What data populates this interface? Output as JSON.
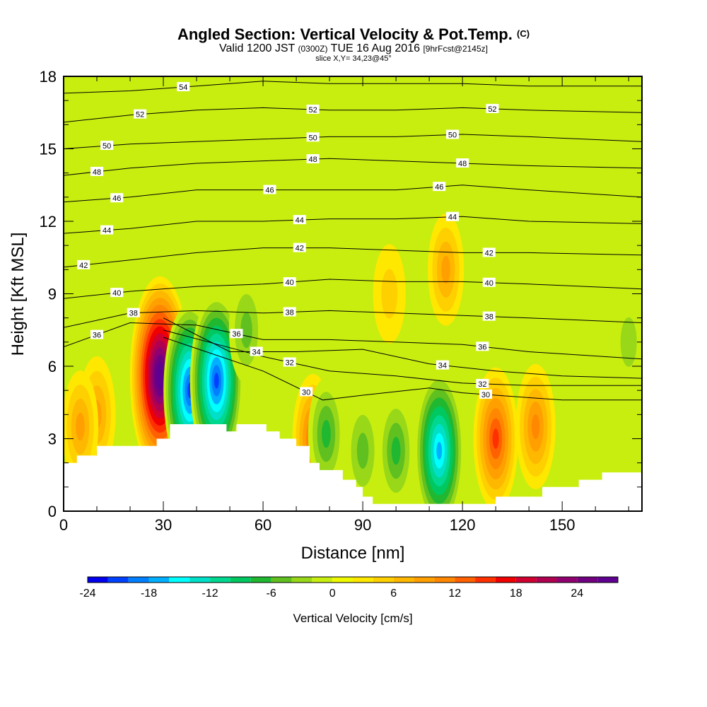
{
  "title": {
    "main": "Angled Section: Vertical Velocity & Pot.Temp.",
    "main_unit": "(C)",
    "valid_prefix": "Valid 1200 JST",
    "valid_zulu": "(0300Z)",
    "valid_date": "TUE 16 Aug 2016",
    "forecast": "[9hrFcst@2145z]",
    "slice": "slice X,Y= 34,23@45°"
  },
  "chart_data": {
    "type": "heatmap",
    "xlabel": "Distance [nm]",
    "ylabel": "Height [Kft MSL]",
    "xlim": [
      0,
      174
    ],
    "ylim": [
      0,
      18
    ],
    "x_ticks": [
      0,
      30,
      60,
      90,
      120,
      150
    ],
    "y_ticks": [
      0,
      3,
      6,
      9,
      12,
      15,
      18
    ],
    "colorbar": {
      "title": "Vertical Velocity [cm/s]",
      "range": [
        -24,
        28
      ],
      "tick_values": [
        -24,
        -18,
        -12,
        -6,
        0,
        6,
        12,
        18,
        24
      ],
      "tick_labels": [
        "-24",
        "-18",
        "-12",
        "-6",
        "0",
        "6",
        "12",
        "18",
        "24"
      ],
      "colors": [
        "#0000ee",
        "#0040ff",
        "#0080ff",
        "#00b0ff",
        "#00ffff",
        "#00e0c8",
        "#00d890",
        "#00c860",
        "#20b830",
        "#60c020",
        "#98d818",
        "#c8ee10",
        "#f0f800",
        "#ffe800",
        "#ffd000",
        "#ffb800",
        "#ffa000",
        "#ff8800",
        "#ff6000",
        "#ff3000",
        "#f00000",
        "#d00030",
        "#b00050",
        "#900070",
        "#700080",
        "#600090"
      ]
    },
    "updrafts": [
      {
        "x": 29,
        "z": 5.6,
        "w": 28
      },
      {
        "x": 10,
        "z": 4.0,
        "w": 9
      },
      {
        "x": 5,
        "z": 3.5,
        "w": 8
      },
      {
        "x": 75,
        "z": 3.0,
        "w": 12
      },
      {
        "x": 130,
        "z": 3.0,
        "w": 15
      },
      {
        "x": 142,
        "z": 3.5,
        "w": 11
      },
      {
        "x": 115,
        "z": 10.0,
        "w": 8
      },
      {
        "x": 98,
        "z": 9.0,
        "w": 5
      }
    ],
    "downdrafts": [
      {
        "x": 38,
        "z": 5.0,
        "w": -22
      },
      {
        "x": 46,
        "z": 5.4,
        "w": -22
      },
      {
        "x": 113,
        "z": 2.5,
        "w": -19
      },
      {
        "x": 79,
        "z": 3.2,
        "w": -8
      },
      {
        "x": 90,
        "z": 2.5,
        "w": -7
      },
      {
        "x": 100,
        "z": 2.5,
        "w": -8
      },
      {
        "x": 55,
        "z": 7.5,
        "w": -7
      },
      {
        "x": 170,
        "z": 7.0,
        "w": -5
      }
    ],
    "terrain": [
      [
        0,
        2.0
      ],
      [
        4,
        2.0
      ],
      [
        4,
        2.3
      ],
      [
        10,
        2.3
      ],
      [
        10,
        2.7
      ],
      [
        28,
        2.7
      ],
      [
        28,
        3.0
      ],
      [
        32,
        3.0
      ],
      [
        32,
        3.6
      ],
      [
        49,
        3.6
      ],
      [
        49,
        3.3
      ],
      [
        52,
        3.3
      ],
      [
        52,
        3.6
      ],
      [
        61,
        3.6
      ],
      [
        61,
        3.3
      ],
      [
        65,
        3.3
      ],
      [
        65,
        3.0
      ],
      [
        70,
        3.0
      ],
      [
        70,
        2.7
      ],
      [
        74,
        2.7
      ],
      [
        74,
        2.0
      ],
      [
        77,
        2.0
      ],
      [
        77,
        1.7
      ],
      [
        84,
        1.7
      ],
      [
        84,
        1.3
      ],
      [
        88,
        1.3
      ],
      [
        88,
        1.0
      ],
      [
        90,
        1.0
      ],
      [
        90,
        0.6
      ],
      [
        93,
        0.6
      ],
      [
        93,
        0.3
      ],
      [
        130,
        0.3
      ],
      [
        130,
        0.6
      ],
      [
        144,
        0.6
      ],
      [
        144,
        1.0
      ],
      [
        155,
        1.0
      ],
      [
        155,
        1.3
      ],
      [
        162,
        1.3
      ],
      [
        162,
        1.6
      ],
      [
        174,
        1.6
      ]
    ],
    "isentropes": [
      {
        "label": "30",
        "x": [
          30,
          60,
          78,
          90,
          110,
          120,
          130,
          150,
          174
        ],
        "z": [
          7.2,
          5.8,
          4.6,
          4.8,
          5.1,
          4.9,
          4.8,
          4.6,
          4.6
        ],
        "labels_at": [
          73,
          127
        ]
      },
      {
        "label": "32",
        "x": [
          30,
          60,
          80,
          100,
          120,
          140,
          174
        ],
        "z": [
          7.5,
          6.4,
          5.8,
          5.6,
          5.3,
          5.2,
          5.2
        ],
        "labels_at": [
          68,
          126
        ]
      },
      {
        "label": "34",
        "x": [
          30,
          50,
          70,
          90,
          110,
          130,
          150,
          174
        ],
        "z": [
          8.0,
          6.6,
          6.6,
          6.7,
          6.1,
          5.8,
          5.6,
          5.5
        ],
        "labels_at": [
          58,
          114
        ]
      },
      {
        "label": "36",
        "x": [
          0,
          20,
          40,
          60,
          80,
          100,
          120,
          140,
          174
        ],
        "z": [
          6.8,
          7.8,
          7.7,
          7.1,
          7.1,
          7.0,
          6.9,
          6.6,
          6.3
        ],
        "labels_at": [
          10,
          52,
          126
        ]
      },
      {
        "label": "38",
        "x": [
          0,
          20,
          40,
          60,
          80,
          100,
          120,
          140,
          174
        ],
        "z": [
          7.6,
          8.2,
          8.3,
          8.2,
          8.3,
          8.2,
          8.1,
          8.0,
          7.8
        ],
        "labels_at": [
          21,
          68,
          128
        ]
      },
      {
        "label": "40",
        "x": [
          0,
          20,
          40,
          60,
          80,
          100,
          120,
          140,
          174
        ],
        "z": [
          8.8,
          9.1,
          9.3,
          9.4,
          9.6,
          9.5,
          9.5,
          9.4,
          9.2
        ],
        "labels_at": [
          16,
          68,
          128
        ]
      },
      {
        "label": "42",
        "x": [
          0,
          20,
          40,
          60,
          80,
          100,
          120,
          140,
          174
        ],
        "z": [
          10.1,
          10.4,
          10.7,
          10.9,
          10.9,
          10.8,
          10.7,
          10.7,
          10.6
        ],
        "labels_at": [
          6,
          71,
          128
        ]
      },
      {
        "label": "44",
        "x": [
          0,
          20,
          40,
          60,
          80,
          100,
          120,
          140,
          174
        ],
        "z": [
          11.5,
          11.7,
          12.0,
          12.0,
          12.1,
          12.1,
          12.2,
          12.0,
          11.9
        ],
        "labels_at": [
          13,
          71,
          117
        ]
      },
      {
        "label": "46",
        "x": [
          0,
          20,
          40,
          60,
          80,
          100,
          120,
          140,
          174
        ],
        "z": [
          12.8,
          13.0,
          13.3,
          13.3,
          13.3,
          13.3,
          13.5,
          13.3,
          13.0
        ],
        "labels_at": [
          16,
          62,
          113
        ]
      },
      {
        "label": "48",
        "x": [
          0,
          20,
          40,
          60,
          80,
          100,
          120,
          140,
          174
        ],
        "z": [
          13.9,
          14.2,
          14.4,
          14.5,
          14.6,
          14.5,
          14.4,
          14.3,
          14.2
        ],
        "labels_at": [
          10,
          75,
          120
        ]
      },
      {
        "label": "50",
        "x": [
          0,
          20,
          40,
          60,
          80,
          100,
          120,
          140,
          174
        ],
        "z": [
          15.0,
          15.2,
          15.3,
          15.4,
          15.5,
          15.5,
          15.6,
          15.5,
          15.3
        ],
        "labels_at": [
          13,
          75,
          117
        ]
      },
      {
        "label": "52",
        "x": [
          0,
          20,
          40,
          60,
          80,
          100,
          120,
          140,
          174
        ],
        "z": [
          16.1,
          16.4,
          16.6,
          16.7,
          16.6,
          16.6,
          16.7,
          16.6,
          16.5
        ],
        "labels_at": [
          23,
          75,
          129
        ]
      },
      {
        "label": "54",
        "x": [
          0,
          20,
          40,
          60,
          80,
          100,
          120,
          140,
          174
        ],
        "z": [
          17.3,
          17.4,
          17.6,
          17.8,
          17.7,
          17.7,
          17.7,
          17.6,
          17.6
        ],
        "labels_at": [
          36
        ]
      }
    ]
  }
}
